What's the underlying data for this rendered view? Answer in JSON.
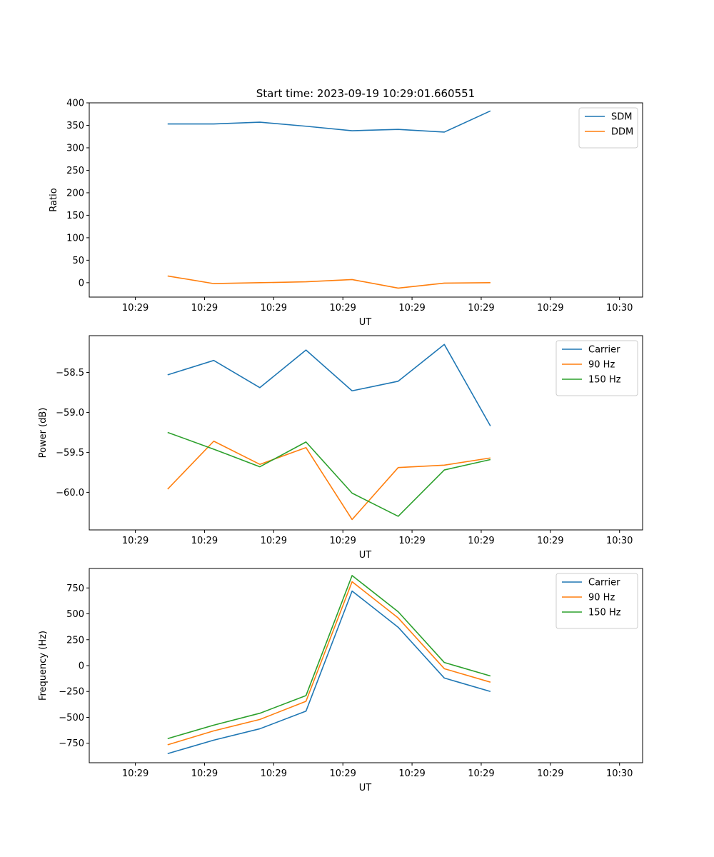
{
  "title": "Start time: 2023-09-19 10:29:01.660551",
  "chart_data": [
    {
      "type": "line",
      "xlabel": "UT",
      "ylabel": "Ratio",
      "xlim": [
        0,
        12
      ],
      "ylim": [
        -32,
        400
      ],
      "x_ticks": [
        1,
        2.5,
        4,
        5.5,
        7,
        8.5,
        10,
        11.5
      ],
      "x_tick_labels": [
        "10:29",
        "10:29",
        "10:29",
        "10:29",
        "10:29",
        "10:29",
        "10:29",
        "10:30"
      ],
      "y_ticks": [
        0,
        50,
        100,
        150,
        200,
        250,
        300,
        350,
        400
      ],
      "y_tick_labels": [
        "0",
        "50",
        "100",
        "150",
        "200",
        "250",
        "300",
        "350",
        "400"
      ],
      "x": [
        1.7,
        2.7,
        3.7,
        4.7,
        5.7,
        6.7,
        7.7,
        8.7
      ],
      "series": [
        {
          "name": "SDM",
          "color": "#1f77b4",
          "values": [
            353,
            353,
            357,
            348,
            338,
            341,
            335,
            382
          ]
        },
        {
          "name": "DDM",
          "color": "#ff7f0e",
          "values": [
            15,
            -2,
            0,
            2,
            7,
            -12,
            -1,
            0
          ]
        }
      ],
      "legend": "top-right"
    },
    {
      "type": "line",
      "xlabel": "UT",
      "ylabel": "Power (dB)",
      "xlim": [
        0,
        12
      ],
      "ylim": [
        -60.47,
        -58.04
      ],
      "x_ticks": [
        1,
        2.5,
        4,
        5.5,
        7,
        8.5,
        10,
        11.5
      ],
      "x_tick_labels": [
        "10:29",
        "10:29",
        "10:29",
        "10:29",
        "10:29",
        "10:29",
        "10:29",
        "10:30"
      ],
      "y_ticks": [
        -60.0,
        -59.5,
        -59.0,
        -58.5
      ],
      "y_tick_labels": [
        "−60.0",
        "−59.5",
        "−59.0",
        "−58.5"
      ],
      "x": [
        1.7,
        2.7,
        3.7,
        4.7,
        5.7,
        6.7,
        7.7,
        8.7
      ],
      "series": [
        {
          "name": "Carrier",
          "color": "#1f77b4",
          "values": [
            -58.53,
            -58.35,
            -58.69,
            -58.22,
            -58.73,
            -58.61,
            -58.15,
            -59.17
          ]
        },
        {
          "name": "90 Hz",
          "color": "#ff7f0e",
          "values": [
            -59.96,
            -59.36,
            -59.65,
            -59.44,
            -60.34,
            -59.69,
            -59.66,
            -59.57
          ]
        },
        {
          "name": "150 Hz",
          "color": "#2ca02c",
          "values": [
            -59.25,
            -59.46,
            -59.68,
            -59.37,
            -60.01,
            -60.3,
            -59.72,
            -59.59
          ]
        }
      ],
      "legend": "top-right"
    },
    {
      "type": "line",
      "xlabel": "UT",
      "ylabel": "Frequency (Hz)",
      "xlim": [
        0,
        12
      ],
      "ylim": [
        -938,
        938
      ],
      "x_ticks": [
        1,
        2.5,
        4,
        5.5,
        7,
        8.5,
        10,
        11.5
      ],
      "x_tick_labels": [
        "10:29",
        "10:29",
        "10:29",
        "10:29",
        "10:29",
        "10:29",
        "10:29",
        "10:30"
      ],
      "y_ticks": [
        -750,
        -500,
        -250,
        0,
        250,
        500,
        750
      ],
      "y_tick_labels": [
        "−750",
        "−500",
        "−250",
        "0",
        "250",
        "500",
        "750"
      ],
      "x": [
        1.7,
        2.7,
        3.7,
        4.7,
        5.7,
        6.7,
        7.7,
        8.7
      ],
      "series": [
        {
          "name": "Carrier",
          "color": "#1f77b4",
          "values": [
            -850,
            -720,
            -610,
            -440,
            720,
            370,
            -120,
            -250
          ]
        },
        {
          "name": "90 Hz",
          "color": "#ff7f0e",
          "values": [
            -765,
            -630,
            -520,
            -345,
            810,
            460,
            -30,
            -160
          ]
        },
        {
          "name": "150 Hz",
          "color": "#2ca02c",
          "values": [
            -705,
            -575,
            -460,
            -290,
            870,
            520,
            30,
            -100
          ]
        }
      ],
      "legend": "top-right"
    }
  ]
}
